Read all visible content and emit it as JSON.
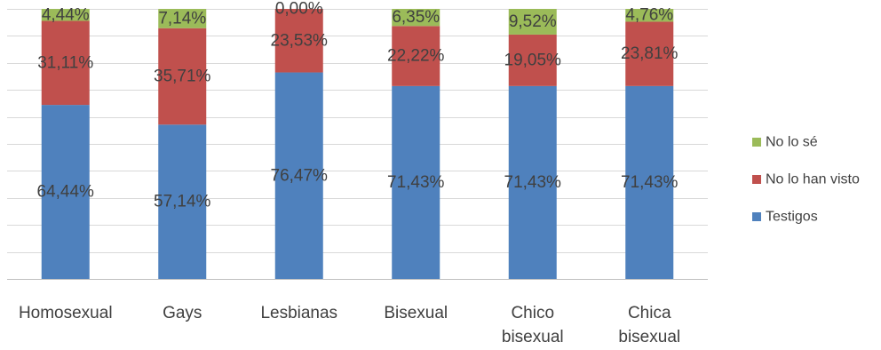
{
  "chart_data": {
    "type": "bar",
    "stacked": true,
    "normalized_percent": true,
    "categories": [
      "Homosexual",
      "Gays",
      "Lesbianas",
      "Bisexual",
      "Chico bisexual",
      "Chica bisexual"
    ],
    "category_lines": [
      [
        "Homosexual"
      ],
      [
        "Gays"
      ],
      [
        "Lesbianas"
      ],
      [
        "Bisexual"
      ],
      [
        "Chico",
        "bisexual"
      ],
      [
        "Chica",
        "bisexual"
      ]
    ],
    "series": [
      {
        "name": "Testigos",
        "color": "#4F81BD",
        "values": [
          64.44,
          57.14,
          76.47,
          71.43,
          71.43,
          71.43
        ],
        "labels": [
          "64,44%",
          "57,14%",
          "76,47%",
          "71,43%",
          "71,43%",
          "71,43%"
        ]
      },
      {
        "name": "No lo han visto",
        "color": "#C0504D",
        "values": [
          31.11,
          35.71,
          23.53,
          22.22,
          19.05,
          23.81
        ],
        "labels": [
          "31,11%",
          "35,71%",
          "23,53%",
          "22,22%",
          "19,05%",
          "23,81%"
        ]
      },
      {
        "name": "No lo sé",
        "color": "#9BBB59",
        "values": [
          4.44,
          7.14,
          0.0,
          6.35,
          9.52,
          4.76
        ],
        "labels": [
          "4,44%",
          "7,14%",
          "0,00%",
          "6,35%",
          "9,52%",
          "4,76%"
        ]
      }
    ],
    "legend_order": [
      "No lo sé",
      "No lo han visto",
      "Testigos"
    ],
    "legend_position": "right",
    "ylim": [
      0,
      100
    ],
    "gridlines": true,
    "gridline_count": 10,
    "xlabel": "",
    "ylabel": "",
    "title": ""
  }
}
